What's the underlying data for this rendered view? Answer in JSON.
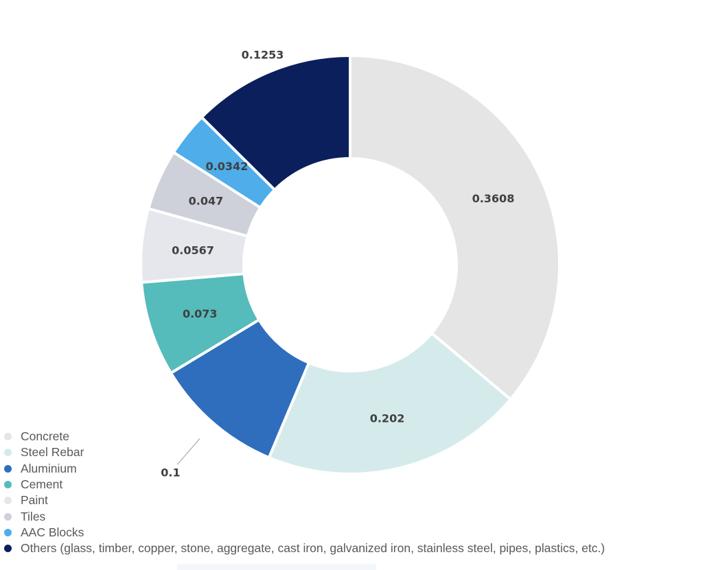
{
  "chart_data": {
    "type": "pie",
    "variant": "donut",
    "title": "",
    "categories": [
      "Concrete",
      "Steel Rebar",
      "Aluminium",
      "Cement",
      "Paint",
      "Tiles",
      "AAC Blocks",
      "Others (glass, timber, copper, stone, aggregate, cast iron, galvanized iron, stainless steel, pipes, plastics, etc.)"
    ],
    "values": [
      0.3608,
      0.202,
      0.1,
      0.073,
      0.0567,
      0.047,
      0.0342,
      0.1253
    ],
    "data_labels": [
      "0.3608",
      "0.202",
      "0.1",
      "0.073",
      "0.0567",
      "0.047",
      "0.0342",
      "0.1253"
    ],
    "colors": [
      "#e5e5e5",
      "#d5ebeb",
      "#2f6ebd",
      "#55bbbb",
      "#e6e7ec",
      "#ced1da",
      "#4fade9",
      "#0a1f5c"
    ],
    "legend_position": "bottom-left",
    "start_angle": "top, clockwise"
  }
}
